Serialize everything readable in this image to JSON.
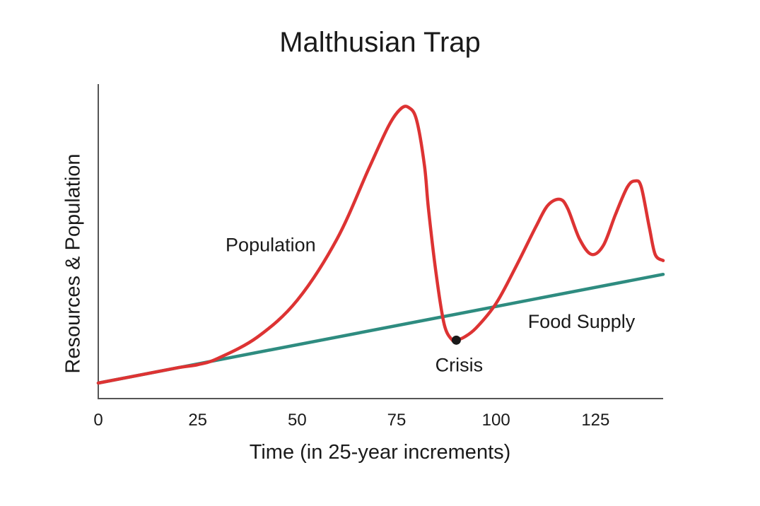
{
  "chart_data": {
    "type": "line",
    "title": "Malthusian Trap",
    "xlabel": "Time (in 25-year increments)",
    "ylabel": "Resources & Population",
    "xlim": [
      0,
      142
    ],
    "ylim": [
      0,
      100
    ],
    "x_ticks": [
      0,
      25,
      50,
      75,
      100,
      125
    ],
    "x_tick_labels": [
      "0",
      "25",
      "50",
      "75",
      "100",
      "125"
    ],
    "y_ticks_shown": false,
    "grid": false,
    "legend": "none",
    "series": [
      {
        "name": "Population",
        "color": "#dd3333",
        "x": [
          0,
          10,
          20,
          25,
          30,
          40,
          50,
          60,
          68,
          73,
          76,
          78,
          80,
          82,
          83,
          85,
          87,
          89,
          90,
          92,
          95,
          100,
          105,
          110,
          113,
          116,
          118,
          121,
          124,
          127,
          130,
          133,
          135,
          136.5,
          138.5,
          140,
          142
        ],
        "y": [
          5,
          7.5,
          10,
          11,
          13,
          20,
          32,
          52,
          75,
          89,
          94.5,
          95,
          91,
          76,
          62,
          40,
          24,
          19,
          19,
          20,
          23,
          31,
          43,
          56,
          63,
          65,
          62,
          52,
          47,
          50,
          60,
          69,
          71,
          69,
          56,
          47,
          45
        ]
      },
      {
        "name": "Food Supply",
        "color": "#2e8c80",
        "x": [
          0,
          142
        ],
        "y": [
          5,
          40.5
        ]
      }
    ],
    "annotations": [
      {
        "text": "Population",
        "x": 32,
        "y": 48
      },
      {
        "text": "Food Supply",
        "x": 108,
        "y": 23
      },
      {
        "text": "Crisis",
        "x": 90,
        "y": 19,
        "marker": "point"
      }
    ]
  }
}
